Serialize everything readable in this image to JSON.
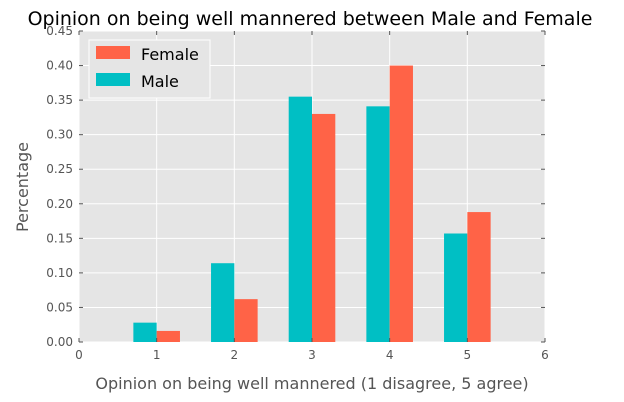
{
  "chart_data": {
    "type": "bar",
    "title": "Opinion on being well mannered between Male and Female",
    "xlabel": "Opinion on being well mannered (1 disagree, 5 agree)",
    "ylabel": "Percentage",
    "xlim": [
      0,
      6
    ],
    "ylim": [
      0,
      0.45
    ],
    "xticks": [
      "0",
      "1",
      "2",
      "3",
      "4",
      "5",
      "6"
    ],
    "yticks": [
      "0.00",
      "0.05",
      "0.10",
      "0.15",
      "0.20",
      "0.25",
      "0.30",
      "0.35",
      "0.40",
      "0.45"
    ],
    "categories": [
      1,
      2,
      3,
      4,
      5
    ],
    "series": [
      {
        "name": "Male",
        "color": "#00BFC4",
        "values": [
          0.028,
          0.114,
          0.355,
          0.341,
          0.157
        ]
      },
      {
        "name": "Female",
        "color": "#FF6347",
        "values": [
          0.016,
          0.062,
          0.33,
          0.4,
          0.188
        ]
      }
    ],
    "legend": {
      "placement": "top-left",
      "entries": [
        {
          "name": "Female",
          "color": "#FF6347"
        },
        {
          "name": "Male",
          "color": "#00BFC4"
        }
      ]
    },
    "grid": true,
    "background": "#E5E5E5"
  }
}
